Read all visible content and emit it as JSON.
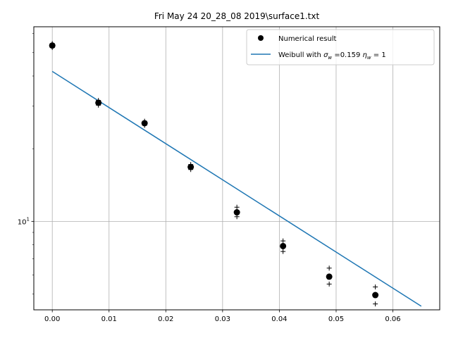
{
  "chart_data": {
    "type": "scatter",
    "title": "Fri May 24 20_28_08 2019\\surface1.txt",
    "xlabel": "",
    "ylabel": "",
    "xlim": [
      -0.00325,
      0.06825
    ],
    "ylim": [
      4.3,
      64
    ],
    "yscale": "log",
    "grid": true,
    "legend_position": "top-right",
    "x_ticks": [
      0.0,
      0.01,
      0.02,
      0.03,
      0.04,
      0.05,
      0.06
    ],
    "x_tick_labels": [
      "0.00",
      "0.01",
      "0.02",
      "0.03",
      "0.04",
      "0.05",
      "0.06"
    ],
    "y_ticks": [
      10
    ],
    "y_tick_labels": [
      {
        "base": "10",
        "exp": "1"
      }
    ],
    "legend": {
      "numerical_label": "Numerical result",
      "weibull_label_prefix": "Weibull with ",
      "weibull_sigma_symbol": "σ",
      "weibull_sigma_sub": "w",
      "weibull_sigma_value": " =0.159 ",
      "weibull_eta_symbol": "η",
      "weibull_eta_sub": "w",
      "weibull_eta_value": " = 1"
    },
    "series": [
      {
        "name": "Numerical result",
        "kind": "points",
        "color": "#000000",
        "x": [
          0.0,
          0.00813,
          0.01626,
          0.02439,
          0.03252,
          0.04065,
          0.04878,
          0.05691
        ],
        "y": [
          53.5,
          31.0,
          25.5,
          16.8,
          10.9,
          7.9,
          5.9,
          4.95
        ]
      },
      {
        "name": "upper bound",
        "kind": "plus",
        "color": "#000000",
        "x": [
          0.0,
          0.00813,
          0.01626,
          0.02439,
          0.03252,
          0.04065,
          0.04878,
          0.05691
        ],
        "y": [
          54.5,
          31.7,
          26.0,
          17.2,
          11.45,
          8.3,
          6.4,
          5.35
        ]
      },
      {
        "name": "lower bound",
        "kind": "plus",
        "color": "#000000",
        "x": [
          0.0,
          0.00813,
          0.01626,
          0.02439,
          0.03252,
          0.04065,
          0.04878,
          0.05691
        ],
        "y": [
          52.5,
          30.3,
          25.0,
          16.4,
          10.45,
          7.5,
          5.5,
          4.55
        ]
      },
      {
        "name": "Weibull with σw =0.159 ηw = 1",
        "kind": "line",
        "color": "#1f77b4",
        "x": [
          0.0,
          0.065
        ],
        "y": [
          41.8,
          4.45
        ]
      }
    ]
  }
}
